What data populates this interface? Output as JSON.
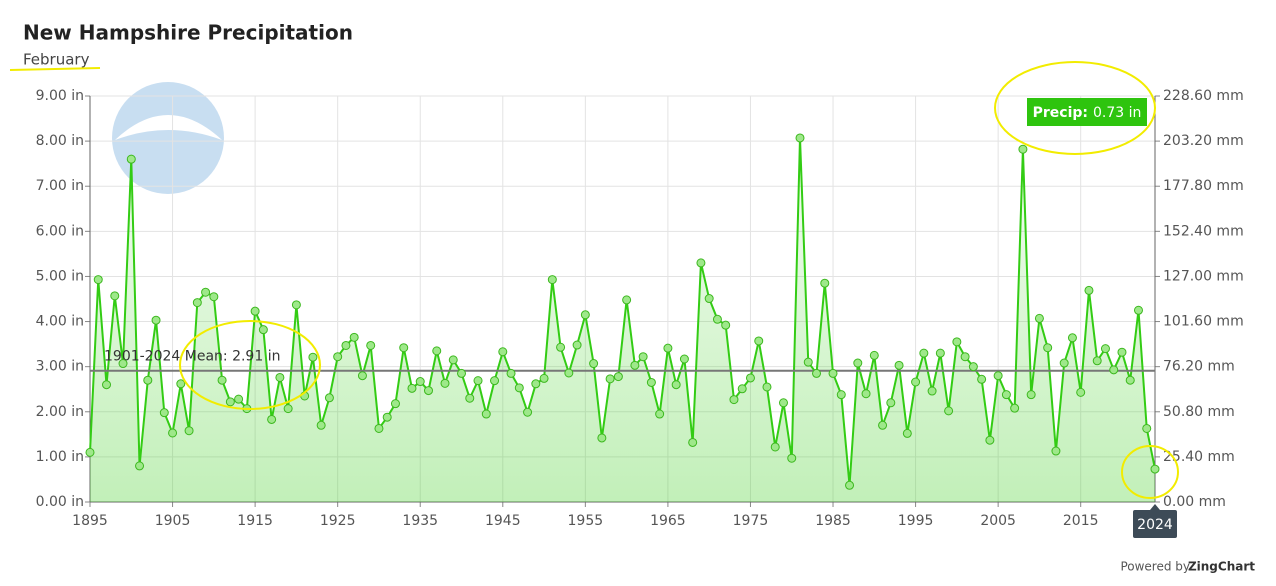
{
  "chart_data": {
    "type": "area-line",
    "title": "New Hampshire Precipitation",
    "subtitle": "February",
    "color": "#33cc14",
    "x": [
      1895,
      1896,
      1897,
      1898,
      1899,
      1900,
      1901,
      1902,
      1903,
      1904,
      1905,
      1906,
      1907,
      1908,
      1909,
      1910,
      1911,
      1912,
      1913,
      1914,
      1915,
      1916,
      1917,
      1918,
      1919,
      1920,
      1921,
      1922,
      1923,
      1924,
      1925,
      1926,
      1927,
      1928,
      1929,
      1930,
      1931,
      1932,
      1933,
      1934,
      1935,
      1936,
      1937,
      1938,
      1939,
      1940,
      1941,
      1942,
      1943,
      1944,
      1945,
      1946,
      1947,
      1948,
      1949,
      1950,
      1951,
      1952,
      1953,
      1954,
      1955,
      1956,
      1957,
      1958,
      1959,
      1960,
      1961,
      1962,
      1963,
      1964,
      1965,
      1966,
      1967,
      1968,
      1969,
      1970,
      1971,
      1972,
      1973,
      1974,
      1975,
      1976,
      1977,
      1978,
      1979,
      1980,
      1981,
      1982,
      1983,
      1984,
      1985,
      1986,
      1987,
      1988,
      1989,
      1990,
      1991,
      1992,
      1993,
      1994,
      1995,
      1996,
      1997,
      1998,
      1999,
      2000,
      2001,
      2002,
      2003,
      2004,
      2005,
      2006,
      2007,
      2008,
      2009,
      2010,
      2011,
      2012,
      2013,
      2014,
      2015,
      2016,
      2017,
      2018,
      2019,
      2020,
      2021,
      2022,
      2023,
      2024
    ],
    "values": [
      1.1,
      4.93,
      2.6,
      4.57,
      3.07,
      7.6,
      0.8,
      2.7,
      4.03,
      1.98,
      1.53,
      2.62,
      1.58,
      4.42,
      4.65,
      4.55,
      2.7,
      2.22,
      2.28,
      2.07,
      4.23,
      3.82,
      1.83,
      2.76,
      2.07,
      4.37,
      2.35,
      3.21,
      1.7,
      2.31,
      3.22,
      3.47,
      3.65,
      2.8,
      3.47,
      1.63,
      1.88,
      2.18,
      3.42,
      2.52,
      2.67,
      2.47,
      3.35,
      2.63,
      3.15,
      2.85,
      2.3,
      2.69,
      1.95,
      2.69,
      3.33,
      2.85,
      2.53,
      1.99,
      2.62,
      2.74,
      4.93,
      3.43,
      2.86,
      3.48,
      4.15,
      3.07,
      1.42,
      2.73,
      2.78,
      4.48,
      3.03,
      3.22,
      2.65,
      1.95,
      3.41,
      2.6,
      3.17,
      1.32,
      5.3,
      4.51,
      4.05,
      3.92,
      2.27,
      2.51,
      2.75,
      3.57,
      2.55,
      1.22,
      2.2,
      0.97,
      8.07,
      3.1,
      2.85,
      4.85,
      2.85,
      2.38,
      0.37,
      3.08,
      2.4,
      3.25,
      1.7,
      2.2,
      3.03,
      1.52,
      2.66,
      3.3,
      2.46,
      3.3,
      2.02,
      3.55,
      3.22,
      3.0,
      2.72,
      1.37,
      2.8,
      2.38,
      2.08,
      7.82,
      2.38,
      4.07,
      3.42,
      1.13,
      3.08,
      3.64,
      2.43,
      4.69,
      3.13,
      3.4,
      2.93,
      3.32,
      2.7,
      4.25,
      1.63,
      0.73
    ],
    "xlim": [
      1895,
      2024
    ],
    "xticks": [
      1895,
      1905,
      1915,
      1925,
      1935,
      1945,
      1955,
      1965,
      1975,
      1985,
      1995,
      2005,
      2015
    ],
    "ylim": [
      0,
      9
    ],
    "yticks": [
      {
        "value": 0,
        "label": "0.00 in"
      },
      {
        "value": 1,
        "label": "1.00 in"
      },
      {
        "value": 2,
        "label": "2.00 in"
      },
      {
        "value": 3,
        "label": "3.00 in"
      },
      {
        "value": 4,
        "label": "4.00 in"
      },
      {
        "value": 5,
        "label": "5.00 in"
      },
      {
        "value": 6,
        "label": "6.00 in"
      },
      {
        "value": 7,
        "label": "7.00 in"
      },
      {
        "value": 8,
        "label": "8.00 in"
      },
      {
        "value": 9,
        "label": "9.00 in"
      }
    ],
    "y2lim": [
      0,
      228.6
    ],
    "y2ticks": [
      {
        "value": 0,
        "label": "0.00 mm"
      },
      {
        "value": 25.4,
        "label": "25.40 mm"
      },
      {
        "value": 50.8,
        "label": "50.80 mm"
      },
      {
        "value": 76.2,
        "label": "76.20 mm"
      },
      {
        "value": 101.6,
        "label": "101.60 mm"
      },
      {
        "value": 127,
        "label": "127.00 mm"
      },
      {
        "value": 152.4,
        "label": "152.40 mm"
      },
      {
        "value": 177.8,
        "label": "177.80 mm"
      },
      {
        "value": 203.2,
        "label": "203.20 mm"
      },
      {
        "value": 228.6,
        "label": "228.60 mm"
      }
    ],
    "grid": true,
    "mean": 2.91,
    "mean_label": "1901-2024 Mean: 2.91 in",
    "tooltip": {
      "label": "Precip:",
      "value": "0.73 in"
    },
    "credit": {
      "prefix": "Powered by",
      "brand": "ZingChart"
    }
  }
}
